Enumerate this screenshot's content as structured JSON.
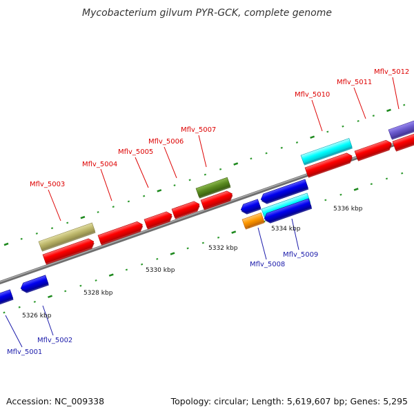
{
  "title": "Mycobacterium gilvum PYR-GCK, complete genome",
  "footer": {
    "accession": "Accession: NC_009338",
    "summary": "Topology: circular; Length: 5,619,607 bp; Genes: 5,295"
  },
  "ruler_labels": [
    "5326 kbp",
    "5328 kbp",
    "5330 kbp",
    "5332 kbp",
    "5334 kbp",
    "5336 kbp"
  ],
  "colors": {
    "forward_gene": "#ff0000",
    "reverse_gene": "#0000ee",
    "forward_label": "#dd0000",
    "reverse_label": "#1a1aaa",
    "backbone": "#808080",
    "tick": "#2a8a2a",
    "cyan_feature": "#00ffff",
    "khaki_feature": "#bdb76b",
    "olive_feature": "#5a8a20",
    "orange_feature": "#ff9900",
    "purple_feature": "#6a5acd"
  },
  "forward_genes": [
    "Mflv_5003",
    "Mflv_5004",
    "Mflv_5005",
    "Mflv_5006",
    "Mflv_5007",
    "Mflv_5010",
    "Mflv_5011",
    "Mflv_5012"
  ],
  "reverse_genes": [
    "Mflv_5001",
    "Mflv_5002",
    "Mflv_5008",
    "Mflv_5009"
  ]
}
